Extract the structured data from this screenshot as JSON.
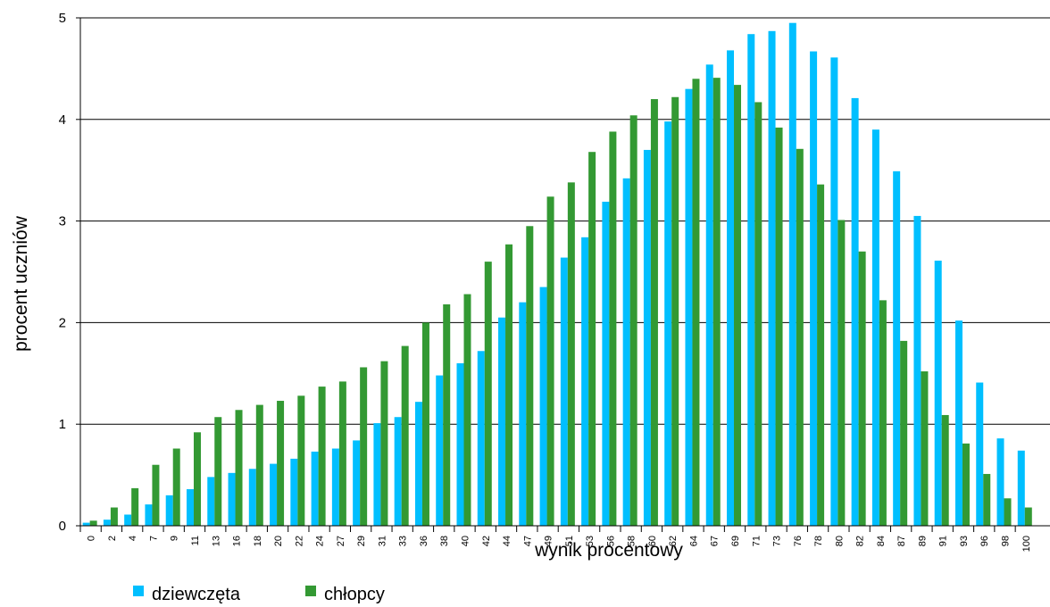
{
  "chart_data": {
    "type": "bar",
    "title": "",
    "xlabel": "wynik procentowy",
    "ylabel": "procent uczniów",
    "ylim": [
      0,
      5
    ],
    "yticks": [
      "0",
      "1",
      "2",
      "3",
      "4",
      "5"
    ],
    "grid": true,
    "legend_position": "bottom-left",
    "categories": [
      "0",
      "2",
      "4",
      "7",
      "9",
      "11",
      "13",
      "16",
      "18",
      "20",
      "22",
      "24",
      "27",
      "29",
      "31",
      "33",
      "36",
      "38",
      "40",
      "42",
      "44",
      "47",
      "49",
      "51",
      "53",
      "56",
      "58",
      "60",
      "62",
      "64",
      "67",
      "69",
      "71",
      "73",
      "76",
      "78",
      "80",
      "82",
      "84",
      "87",
      "89",
      "91",
      "93",
      "96",
      "98",
      "100"
    ],
    "series": [
      {
        "name": "dziewczęta",
        "color": "#00bfff",
        "values": [
          0.03,
          0.06,
          0.11,
          0.21,
          0.3,
          0.36,
          0.48,
          0.52,
          0.56,
          0.61,
          0.66,
          0.73,
          0.76,
          0.84,
          1.01,
          1.07,
          1.22,
          1.48,
          1.6,
          1.72,
          2.05,
          2.2,
          2.35,
          2.64,
          2.84,
          3.19,
          3.42,
          3.7,
          3.98,
          4.3,
          4.54,
          4.68,
          4.84,
          4.87,
          4.95,
          4.67,
          4.61,
          4.21,
          3.9,
          3.49,
          3.05,
          2.61,
          2.02,
          1.41,
          0.86,
          0.74
        ]
      },
      {
        "name": "chłopcy",
        "color": "#339933",
        "values": [
          0.05,
          0.18,
          0.37,
          0.6,
          0.76,
          0.92,
          1.07,
          1.14,
          1.19,
          1.23,
          1.28,
          1.37,
          1.42,
          1.56,
          1.62,
          1.77,
          2.0,
          2.18,
          2.28,
          2.6,
          2.77,
          2.95,
          3.24,
          3.38,
          3.68,
          3.88,
          4.04,
          4.2,
          4.22,
          4.4,
          4.41,
          4.34,
          4.17,
          3.92,
          3.71,
          3.36,
          3.01,
          2.7,
          2.22,
          1.82,
          1.52,
          1.09,
          0.81,
          0.51,
          0.27,
          0.18
        ]
      }
    ]
  }
}
